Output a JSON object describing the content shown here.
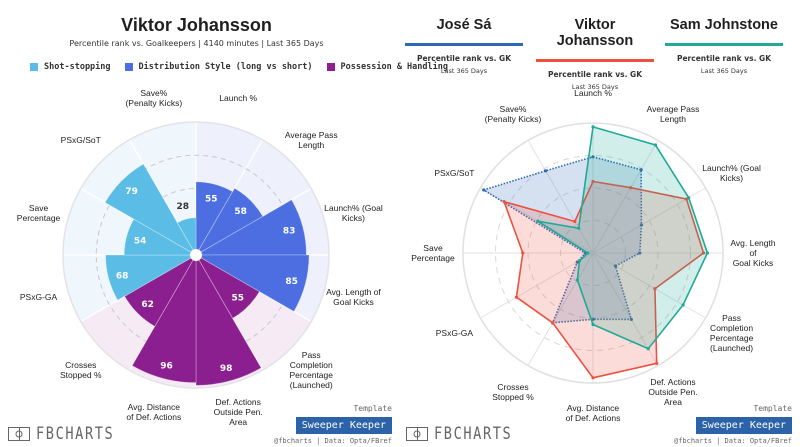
{
  "left": {
    "title": "Viktor Johansson",
    "subtitle": "Percentile rank vs. Goalkeepers | 4140 minutes | Last 365 Days",
    "legend": [
      {
        "label": "Shot-stopping",
        "color": "#5bbde6"
      },
      {
        "label": "Distribution Style (long vs short)",
        "color": "#4c6ee0"
      },
      {
        "label": "Possession & Handling",
        "color": "#8b1f8f"
      }
    ]
  },
  "right": {
    "players": [
      {
        "name": "José Sá",
        "color": "#2e6ab3",
        "sub": "Percentile rank vs. GK",
        "sub2": "Last 365 Days"
      },
      {
        "name": "Viktor Johansson",
        "color": "#ee5040",
        "sub": "Percentile rank vs. GK",
        "sub2": "Last 365 Days"
      },
      {
        "name": "Sam Johnstone",
        "color": "#1fa996",
        "sub": "Percentile rank vs. GK",
        "sub2": "Last 365 Days"
      }
    ]
  },
  "footer": {
    "logo_text": "FBCHARTS",
    "template_label": "Template",
    "template_name": "Sweeper Keeper",
    "credit": "@fbcharts | Data: Opta/FBref"
  },
  "chart_data": [
    {
      "type": "bar",
      "subtype": "polar-bar",
      "title": "Viktor Johansson",
      "subtitle": "Percentile rank vs. Goalkeepers | 4140 minutes | Last 365 Days",
      "range": [
        0,
        100
      ],
      "gridlines": [
        25,
        50,
        75
      ],
      "categories": [
        "Launch %",
        "Average Pass\nLength",
        "Launch% (Goal\nKicks)",
        "Avg. Length of\nGoal Kicks",
        "Pass\nCompletion\nPercentage\n(Launched)",
        "Def. Actions\nOutside Pen.\nArea",
        "Avg. Distance\nof Def. Actions",
        "Crosses\nStopped %",
        "PSxG-GA",
        "Save\nPercentage",
        "PSxG/SoT",
        "Save%\n(Penalty Kicks)"
      ],
      "groups": [
        "Distribution Style (long vs short)",
        "Distribution Style (long vs short)",
        "Distribution Style (long vs short)",
        "Distribution Style (long vs short)",
        "Possession & Handling",
        "Possession & Handling",
        "Possession & Handling",
        "Possession & Handling",
        "Shot-stopping",
        "Shot-stopping",
        "Shot-stopping",
        "Shot-stopping"
      ],
      "values": [
        55,
        58,
        83,
        85,
        55,
        98,
        96,
        62,
        68,
        54,
        79,
        28
      ],
      "legend": "top"
    },
    {
      "type": "radar",
      "title": "José Sá vs Viktor Johansson vs Sam Johnstone",
      "range": [
        0,
        100
      ],
      "gridlines": [
        25,
        50,
        75
      ],
      "categories": [
        "Launch %",
        "Average Pass\nLength",
        "Launch% (Goal\nKicks)",
        "Avg. Length of\nGoal Kicks",
        "Pass\nCompletion\nPercentage\n(Launched)",
        "Def. Actions\nOutside Pen.\nArea",
        "Avg. Distance\nof Def. Actions",
        "Crosses\nStopped %",
        "PSxG-GA",
        "Save\nPercentage",
        "PSxG/SoT",
        "Save%\n(Penalty Kicks)"
      ],
      "series": [
        {
          "name": "José Sá",
          "style": "dotted",
          "color": "#2e6ab3",
          "values": [
            74,
            74,
            43,
            36,
            20,
            59,
            51,
            62,
            14,
            6,
            97,
            73
          ]
        },
        {
          "name": "Viktor Johansson",
          "style": "solid",
          "color": "#ee5040",
          "values": [
            55,
            58,
            83,
            85,
            55,
            98,
            96,
            62,
            68,
            54,
            79,
            28
          ]
        },
        {
          "name": "Sam Johnstone",
          "style": "solid",
          "color": "#1fa996",
          "values": [
            97,
            96,
            85,
            88,
            80,
            85,
            55,
            24,
            12,
            4,
            49,
            22
          ]
        }
      ],
      "legend": "top"
    }
  ]
}
